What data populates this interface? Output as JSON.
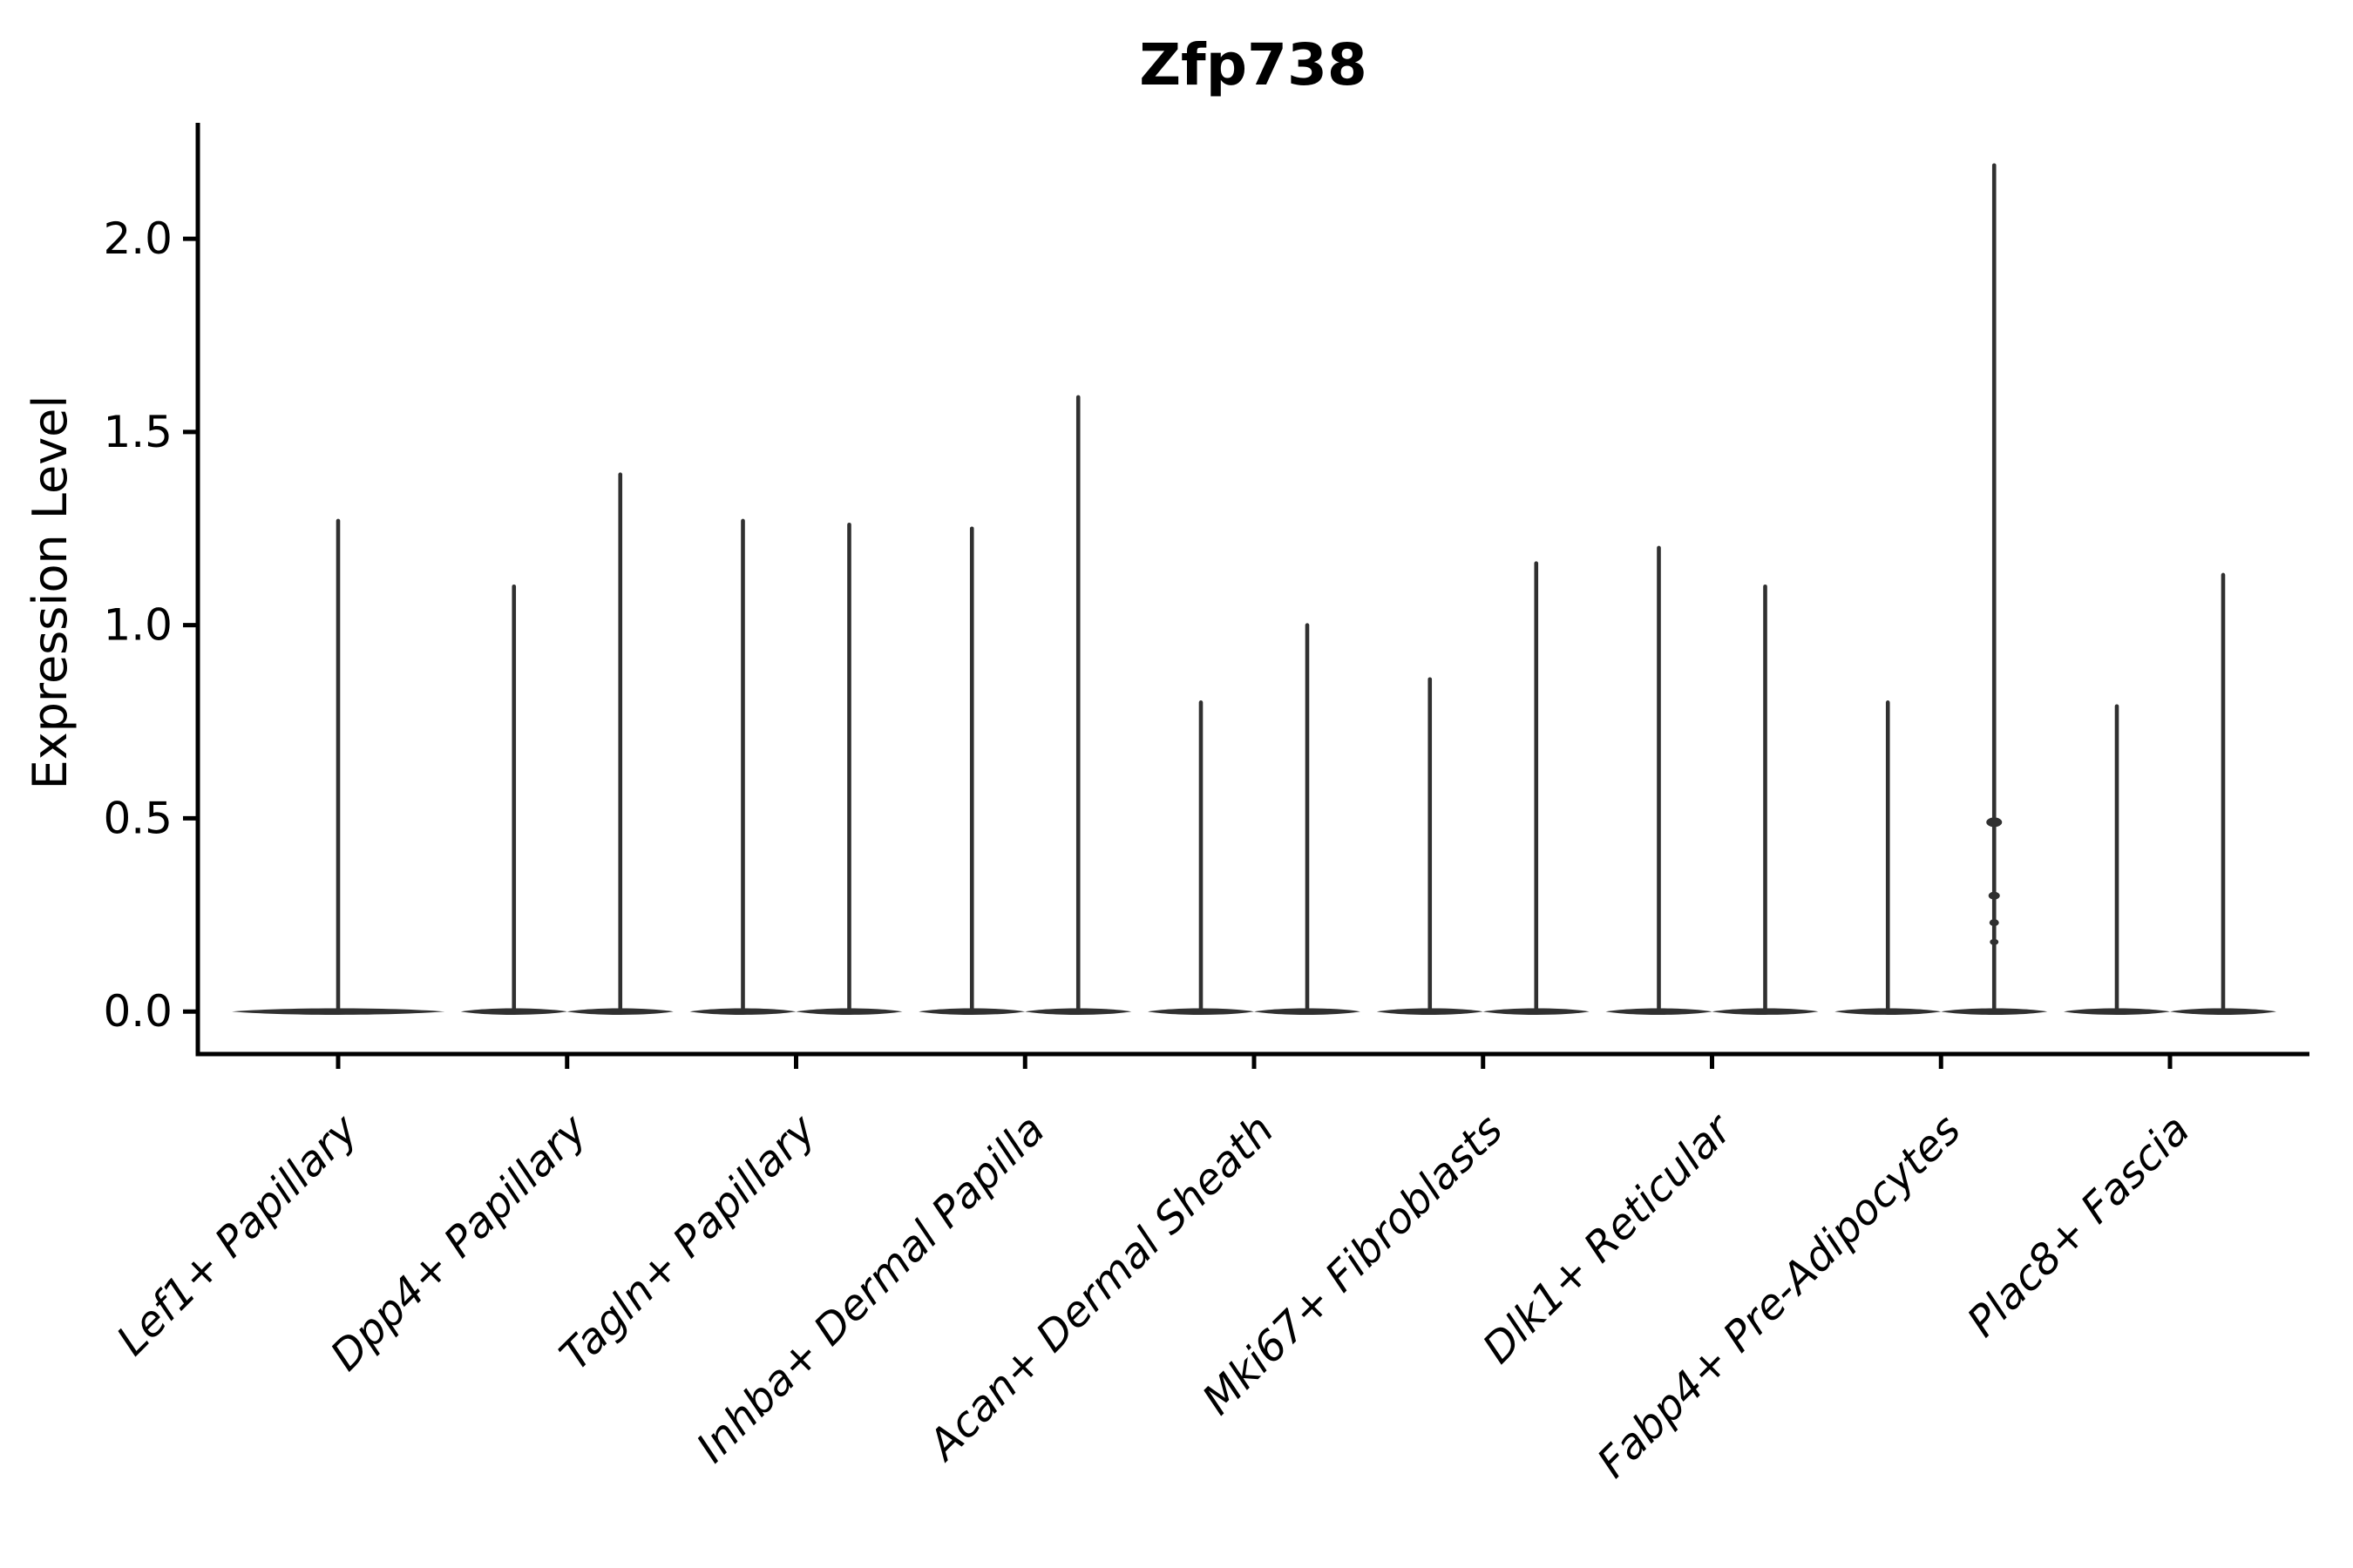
{
  "title": "Zfp738",
  "chart_data": {
    "type": "violin",
    "title": "Zfp738",
    "xlabel": "",
    "ylabel": "Expression Level",
    "ylim": [
      -0.11,
      2.3
    ],
    "yticks": [
      0.0,
      0.5,
      1.0,
      1.5,
      2.0
    ],
    "ytick_labels": [
      "0.0",
      "0.5",
      "1.0",
      "1.5",
      "2.0"
    ],
    "grid": false,
    "legend": null,
    "categories": [
      "Lef1+ Papillary",
      "Dpp4+ Papillary",
      "Tagln+ Papillary",
      "Inhba+ Dermal Papilla",
      "Acan+ Dermal Sheath",
      "Mki67+ Fibroblasts",
      "Dlk1+ Reticular",
      "Fabp4+ Pre-Adipocytes",
      "Plac8+ Fascia"
    ],
    "series": [
      {
        "category": "Lef1+ Papillary",
        "spike_maxima": [
          1.27
        ]
      },
      {
        "category": "Dpp4+ Papillary",
        "spike_maxima": [
          1.1,
          1.39
        ]
      },
      {
        "category": "Tagln+ Papillary",
        "spike_maxima": [
          1.27,
          1.26
        ]
      },
      {
        "category": "Inhba+ Dermal Papilla",
        "spike_maxima": [
          1.25,
          1.59
        ]
      },
      {
        "category": "Acan+ Dermal Sheath",
        "spike_maxima": [
          0.8,
          1.0
        ]
      },
      {
        "category": "Mki67+ Fibroblasts",
        "spike_maxima": [
          0.86,
          1.16
        ]
      },
      {
        "category": "Dlk1+ Reticular",
        "spike_maxima": [
          1.2,
          1.1
        ]
      },
      {
        "category": "Fabp4+ Pre-Adipocytes",
        "spike_maxima": [
          0.8,
          2.19
        ],
        "bumps": [
          0.49,
          0.3,
          0.23,
          0.18
        ]
      },
      {
        "category": "Plac8+ Fascia",
        "spike_maxima": [
          0.79,
          1.13
        ]
      }
    ],
    "violin_shape_note": "zero-inflated: wide flat base at 0 with single thin spike to max per violin",
    "colors": {
      "violin": "#303030",
      "axis": "#000000",
      "text": "#000000",
      "background": "#ffffff"
    }
  }
}
